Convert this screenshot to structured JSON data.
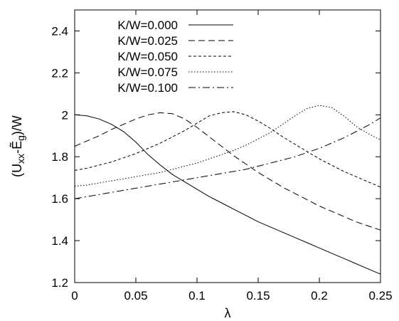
{
  "chart_data": {
    "type": "line",
    "xlabel": "λ",
    "ylabel": "(U_xx-Ẽ_g)/W",
    "ylabel_parts": {
      "pre": "(U",
      "sub1": "xx",
      "mid": "-Ẽ",
      "sub2": "g",
      "post": ")/W"
    },
    "xlim": [
      0,
      0.25
    ],
    "ylim": [
      1.2,
      2.5
    ],
    "x_ticks": [
      0,
      0.05,
      0.1,
      0.15,
      0.2,
      0.25
    ],
    "x_tick_labels": [
      "0",
      "0.05",
      "0.1",
      "0.15",
      "0.2",
      "0.25"
    ],
    "y_ticks": [
      1.2,
      1.4,
      1.6,
      1.8,
      2.0,
      2.2,
      2.4
    ],
    "y_tick_labels": [
      "1.2",
      "1.4",
      "1.6",
      "1.8",
      "2",
      "2.2",
      "2.4"
    ],
    "grid": false,
    "legend_position": "top-left",
    "series": [
      {
        "name": "K/W=0.000",
        "style": "solid",
        "x": [
          0,
          0.01,
          0.02,
          0.03,
          0.04,
          0.05,
          0.06,
          0.07,
          0.08,
          0.09,
          0.1,
          0.11,
          0.12,
          0.13,
          0.14,
          0.15,
          0.16,
          0.17,
          0.18,
          0.19,
          0.2,
          0.21,
          0.22,
          0.23,
          0.24,
          0.25
        ],
        "y": [
          2.0,
          1.995,
          1.98,
          1.955,
          1.92,
          1.87,
          1.81,
          1.76,
          1.715,
          1.68,
          1.645,
          1.61,
          1.58,
          1.55,
          1.52,
          1.49,
          1.465,
          1.44,
          1.415,
          1.39,
          1.365,
          1.34,
          1.315,
          1.29,
          1.265,
          1.24
        ]
      },
      {
        "name": "K/W=0.025",
        "style": "dashed",
        "x": [
          0,
          0.01,
          0.02,
          0.03,
          0.04,
          0.05,
          0.06,
          0.07,
          0.08,
          0.09,
          0.1,
          0.11,
          0.12,
          0.13,
          0.14,
          0.15,
          0.16,
          0.17,
          0.18,
          0.19,
          0.2,
          0.21,
          0.22,
          0.23,
          0.24,
          0.25
        ],
        "y": [
          1.85,
          1.875,
          1.9,
          1.93,
          1.955,
          1.98,
          2.0,
          2.01,
          2.005,
          1.98,
          1.94,
          1.895,
          1.85,
          1.805,
          1.765,
          1.725,
          1.69,
          1.655,
          1.625,
          1.595,
          1.565,
          1.54,
          1.515,
          1.49,
          1.47,
          1.45
        ]
      },
      {
        "name": "K/W=0.050",
        "style": "short-dashed",
        "x": [
          0,
          0.01,
          0.02,
          0.03,
          0.04,
          0.05,
          0.06,
          0.07,
          0.08,
          0.09,
          0.1,
          0.11,
          0.12,
          0.13,
          0.14,
          0.15,
          0.16,
          0.17,
          0.18,
          0.19,
          0.2,
          0.21,
          0.22,
          0.23,
          0.24,
          0.25
        ],
        "y": [
          1.735,
          1.745,
          1.76,
          1.775,
          1.795,
          1.815,
          1.84,
          1.865,
          1.895,
          1.925,
          1.96,
          1.995,
          2.01,
          2.015,
          2.0,
          1.97,
          1.935,
          1.895,
          1.86,
          1.825,
          1.79,
          1.76,
          1.73,
          1.705,
          1.68,
          1.655
        ]
      },
      {
        "name": "K/W=0.075",
        "style": "dotted",
        "x": [
          0,
          0.01,
          0.02,
          0.03,
          0.04,
          0.05,
          0.06,
          0.07,
          0.08,
          0.09,
          0.1,
          0.11,
          0.12,
          0.13,
          0.14,
          0.15,
          0.16,
          0.17,
          0.18,
          0.19,
          0.2,
          0.21,
          0.22,
          0.23,
          0.24,
          0.25
        ],
        "y": [
          1.66,
          1.665,
          1.675,
          1.685,
          1.695,
          1.705,
          1.715,
          1.725,
          1.74,
          1.755,
          1.77,
          1.79,
          1.81,
          1.83,
          1.855,
          1.885,
          1.915,
          1.955,
          1.995,
          2.03,
          2.045,
          2.035,
          1.995,
          1.945,
          1.91,
          1.88
        ]
      },
      {
        "name": "K/W=0.100",
        "style": "dash-dot",
        "x": [
          0,
          0.01,
          0.02,
          0.03,
          0.04,
          0.05,
          0.06,
          0.07,
          0.08,
          0.09,
          0.1,
          0.11,
          0.12,
          0.13,
          0.14,
          0.15,
          0.16,
          0.17,
          0.18,
          0.19,
          0.2,
          0.21,
          0.22,
          0.23,
          0.24,
          0.25
        ],
        "y": [
          1.6,
          1.61,
          1.62,
          1.63,
          1.64,
          1.65,
          1.66,
          1.67,
          1.68,
          1.69,
          1.7,
          1.71,
          1.72,
          1.73,
          1.74,
          1.755,
          1.77,
          1.785,
          1.8,
          1.82,
          1.84,
          1.865,
          1.89,
          1.92,
          1.95,
          1.985
        ]
      }
    ]
  }
}
